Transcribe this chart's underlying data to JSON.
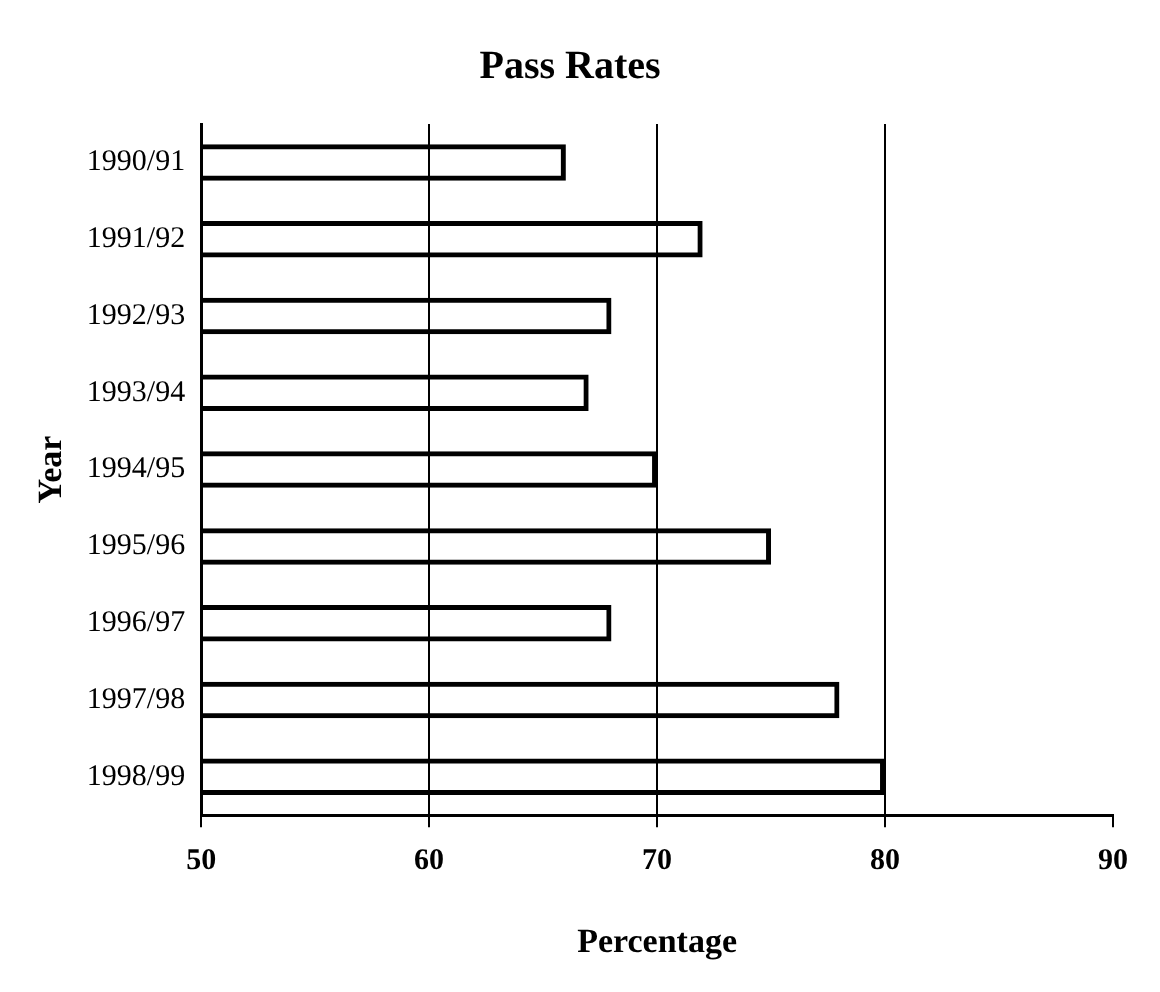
{
  "chart_data": {
    "type": "bar",
    "orientation": "horizontal",
    "title": "Pass Rates",
    "xlabel": "Percentage",
    "ylabel": "Year",
    "categories": [
      "1990/91",
      "1991/92",
      "1992/93",
      "1993/94",
      "1994/95",
      "1995/96",
      "1996/97",
      "1997/98",
      "1998/99"
    ],
    "values": [
      66,
      72,
      68,
      67,
      70,
      75,
      68,
      78,
      80
    ],
    "color": "#000000",
    "xlim": [
      50,
      90
    ],
    "xticks": [
      50,
      60,
      70,
      80,
      90
    ],
    "grid": "x"
  }
}
